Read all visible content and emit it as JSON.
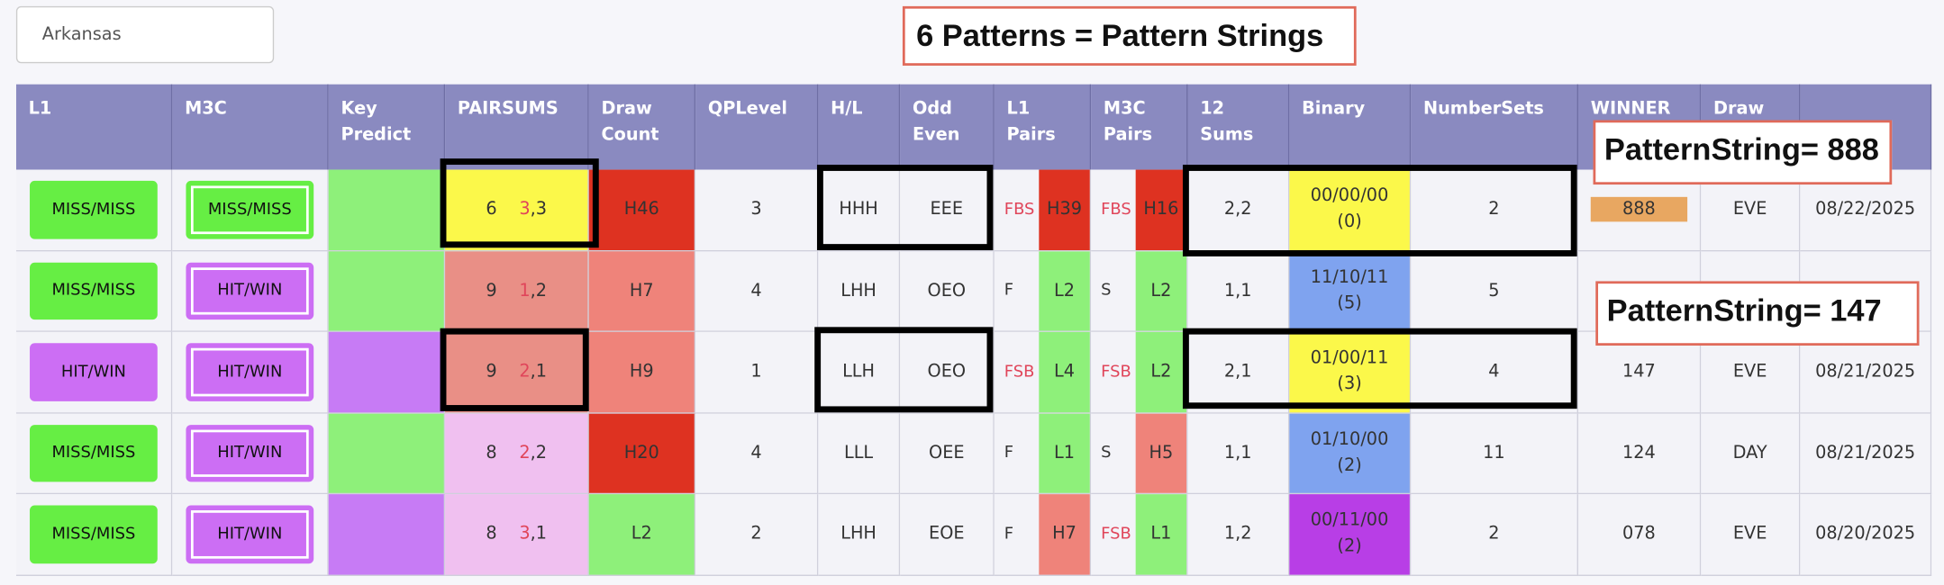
{
  "search": "Arkansas",
  "banner": "6 Patterns = Pattern Strings",
  "headers": [
    "L1",
    "M3C",
    "Key Predict",
    "PAIRSUMS",
    "Draw Count",
    "QPLevel",
    "H/L",
    "Odd Even",
    "L1 Pairs",
    "M3C Pairs",
    "12 Sums",
    "Binary",
    "NumberSets",
    "WINNER",
    "Draw"
  ],
  "callouts": [
    "PatternString= 888",
    "PatternString= 147"
  ],
  "rows": [
    {
      "l1": "MISS/MISS",
      "l1_color": "#66ee44",
      "m3c": "MISS/MISS",
      "m3c_color": "#66ee44",
      "key_color": "#8ef07a",
      "pairsum": "6",
      "pair": [
        "3",
        ",3"
      ],
      "pairsum_color": "#fbf84a",
      "draw_count": "H46",
      "draw_color": "#de3221",
      "qp": "3",
      "hl": "HHH",
      "oe": "EEE",
      "l1_tag": "FBS",
      "l1_tag_color": "#e0455a",
      "l1_pair": "H39",
      "l1_pair_color": "#de3221",
      "m3c_tag": "FBS",
      "m3c_tag_color": "#e0455a",
      "m3c_pair": "H16",
      "m3c_pair_color": "#de3221",
      "sums": "2,2",
      "binary": "00/00/00 (0)",
      "binary_color": "#fbf84a",
      "numbersets": "2",
      "winner": "888",
      "winner_color": "#e8a761",
      "draw": "EVE",
      "date": "08/22/2025"
    },
    {
      "l1": "MISS/MISS",
      "l1_color": "#66ee44",
      "m3c": "HIT/WIN",
      "m3c_color": "#cc6ef4",
      "key_color": "#8ef07a",
      "pairsum": "9",
      "pair": [
        "1",
        ",2"
      ],
      "pairsum_color": "#e98f86",
      "draw_count": "H7",
      "draw_color": "#ef837a",
      "qp": "4",
      "hl": "LHH",
      "oe": "OEO",
      "l1_tag": "F",
      "l1_tag_color": "#333333",
      "l1_pair": "L2",
      "l1_pair_color": "#8ef07a",
      "m3c_tag": "S",
      "m3c_tag_color": "#333333",
      "m3c_pair": "L2",
      "m3c_pair_color": "#8ef07a",
      "sums": "1,1",
      "binary": "11/10/11 (5)",
      "binary_color": "#7fa3ef",
      "numbersets": "5"
    },
    {
      "l1": "HIT/WIN",
      "l1_color": "#cc6ef4",
      "m3c": "HIT/WIN",
      "m3c_color": "#cc6ef4",
      "key_color": "#c77bf5",
      "pairsum": "9",
      "pair": [
        "2",
        ",1"
      ],
      "pairsum_color": "#e98f86",
      "draw_count": "H9",
      "draw_color": "#ef837a",
      "qp": "1",
      "hl": "LLH",
      "oe": "OEO",
      "l1_tag": "FSB",
      "l1_tag_color": "#e0455a",
      "l1_pair": "L4",
      "l1_pair_color": "#8ef07a",
      "m3c_tag": "FSB",
      "m3c_tag_color": "#e0455a",
      "m3c_pair": "L2",
      "m3c_pair_color": "#8ef07a",
      "sums": "2,1",
      "binary": "01/00/11 (3)",
      "binary_color": "#fbf84a",
      "numbersets": "4",
      "winner": "147",
      "draw": "EVE",
      "date": "08/21/2025"
    },
    {
      "l1": "MISS/MISS",
      "l1_color": "#66ee44",
      "m3c": "HIT/WIN",
      "m3c_color": "#cc6ef4",
      "key_color": "#8ef07a",
      "pairsum": "8",
      "pair": [
        "2",
        ",2"
      ],
      "pairsum_color": "#f0c0f0",
      "draw_count": "H20",
      "draw_color": "#de3221",
      "qp": "4",
      "hl": "LLL",
      "oe": "OEE",
      "l1_tag": "F",
      "l1_tag_color": "#333333",
      "l1_pair": "L1",
      "l1_pair_color": "#8ef07a",
      "m3c_tag": "S",
      "m3c_tag_color": "#333333",
      "m3c_pair": "H5",
      "m3c_pair_color": "#ef837a",
      "sums": "1,1",
      "binary": "01/10/00 (2)",
      "binary_color": "#7fa3ef",
      "numbersets": "11",
      "winner": "124",
      "draw": "DAY",
      "date": "08/21/2025"
    },
    {
      "l1": "MISS/MISS",
      "l1_color": "#66ee44",
      "m3c": "HIT/WIN",
      "m3c_color": "#cc6ef4",
      "key_color": "#c77bf5",
      "pairsum": "8",
      "pair": [
        "3",
        ",1"
      ],
      "pairsum_color": "#f0c0f0",
      "draw_count": "L2",
      "draw_color": "#8ef07a",
      "qp": "2",
      "hl": "LHH",
      "oe": "EOE",
      "l1_tag": "F",
      "l1_tag_color": "#333333",
      "l1_pair": "H7",
      "l1_pair_color": "#ef837a",
      "m3c_tag": "FSB",
      "m3c_tag_color": "#e0455a",
      "m3c_pair": "L1",
      "m3c_pair_color": "#8ef07a",
      "sums": "1,2",
      "binary": "00/11/00 (2)",
      "binary_color": "#b83ee6",
      "numbersets": "2",
      "winner": "078",
      "draw": "EVE",
      "date": "08/20/2025"
    }
  ]
}
